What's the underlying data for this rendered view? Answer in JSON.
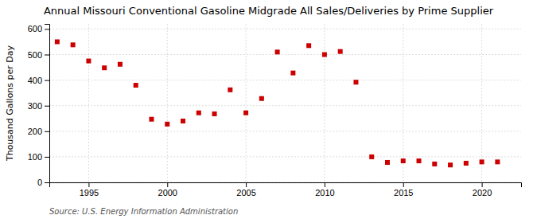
{
  "chart_data": {
    "type": "scatter",
    "title": "Annual Missouri Conventional Gasoline Midgrade All Sales/Deliveries by Prime Supplier",
    "y_label": "Thousand Gallons per Day",
    "annotations": [
      "Source: U.S. Energy Information Administration"
    ],
    "x": [
      1993,
      1994,
      1995,
      1996,
      1997,
      1998,
      1999,
      2000,
      2001,
      2002,
      2003,
      2004,
      2005,
      2006,
      2007,
      2008,
      2009,
      2010,
      2011,
      2012,
      2013,
      2014,
      2015,
      2016,
      2017,
      2018,
      2019,
      2020,
      2021
    ],
    "values": [
      550,
      538,
      475,
      448,
      462,
      380,
      247,
      228,
      240,
      272,
      268,
      362,
      272,
      328,
      510,
      428,
      535,
      500,
      512,
      392,
      100,
      78,
      84,
      84,
      72,
      68,
      75,
      80,
      80
    ],
    "color": "#cc0000",
    "marker": "square",
    "xlim": [
      1992.5,
      2022.5
    ],
    "ylim": [
      0,
      620
    ],
    "xticks": [
      1995,
      2000,
      2005,
      2010,
      2015,
      2020
    ],
    "yticks": [
      0,
      100,
      200,
      300,
      400,
      500,
      600
    ],
    "grid": true
  }
}
